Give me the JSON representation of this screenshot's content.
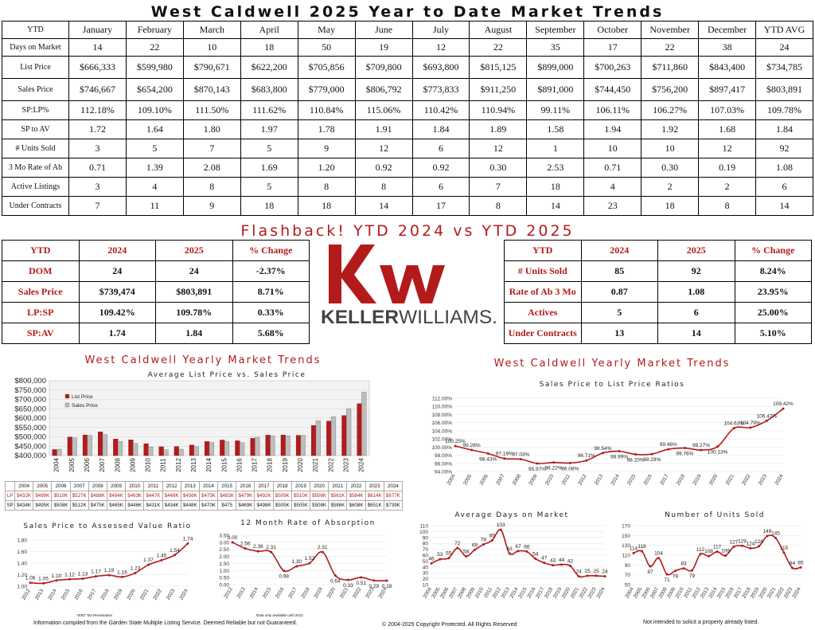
{
  "title": "West Caldwell 2025 Year to Date Market Trends",
  "colors": {
    "accent": "#b31b1b",
    "gray": "#bdbdbd"
  },
  "main_table": {
    "header": [
      "YTD",
      "January",
      "February",
      "March",
      "April",
      "May",
      "June",
      "July",
      "August",
      "September",
      "October",
      "November",
      "December",
      "YTD AVG"
    ],
    "rows": [
      {
        "label": "Days on Market",
        "values": [
          "14",
          "22",
          "10",
          "18",
          "50",
          "19",
          "12",
          "22",
          "35",
          "17",
          "22",
          "38",
          "24"
        ]
      },
      {
        "label": "List Price",
        "values": [
          "$666,333",
          "$599,980",
          "$790,671",
          "$622,200",
          "$705,856",
          "$709,800",
          "$693,800",
          "$815,125",
          "$899,000",
          "$700,263",
          "$711,860",
          "$843,400",
          "$734,785"
        ]
      },
      {
        "label": "Sales Price",
        "values": [
          "$746,667",
          "$654,200",
          "$870,143",
          "$683,800",
          "$779,000",
          "$806,792",
          "$773,833",
          "$911,250",
          "$891,000",
          "$744,450",
          "$756,200",
          "$897,417",
          "$803,891"
        ]
      },
      {
        "label": "SP:LP%",
        "values": [
          "112.18%",
          "109.10%",
          "111.50%",
          "111.62%",
          "110.84%",
          "115.06%",
          "110.42%",
          "110.94%",
          "99.11%",
          "106.11%",
          "106.27%",
          "107.03%",
          "109.78%"
        ]
      },
      {
        "label": "SP to AV",
        "values": [
          "1.72",
          "1.64",
          "1.80",
          "1.97",
          "1.78",
          "1.91",
          "1.84",
          "1.89",
          "1.58",
          "1.94",
          "1.92",
          "1.68",
          "1.84"
        ]
      },
      {
        "label": "# Units Sold",
        "values": [
          "3",
          "5",
          "7",
          "5",
          "9",
          "12",
          "6",
          "12",
          "1",
          "10",
          "10",
          "12",
          "92"
        ]
      },
      {
        "label": "3 Mo Rate of Ab",
        "values": [
          "0.71",
          "1.39",
          "2.08",
          "1.69",
          "1.20",
          "0.92",
          "0.92",
          "0.30",
          "2.53",
          "0.71",
          "0.30",
          "0.19",
          "1.08"
        ]
      },
      {
        "label": "Active Listings",
        "values": [
          "3",
          "4",
          "8",
          "5",
          "8",
          "8",
          "6",
          "7",
          "18",
          "4",
          "2",
          "2",
          "6"
        ]
      },
      {
        "label": "Under Contracts",
        "values": [
          "7",
          "11",
          "9",
          "18",
          "18",
          "14",
          "17",
          "8",
          "14",
          "23",
          "18",
          "8",
          "14"
        ]
      }
    ]
  },
  "flashback_title": "Flashback!  YTD 2024 vs YTD 2025",
  "left_compare": {
    "header": [
      "YTD",
      "2024",
      "2025",
      "% Change"
    ],
    "rows": [
      [
        "DOM",
        "24",
        "24",
        "-2.37%"
      ],
      [
        "Sales Price",
        "$739,474",
        "$803,891",
        "8.71%"
      ],
      [
        "LP:SP",
        "109.42%",
        "109.78%",
        "0.33%"
      ],
      [
        "SP:AV",
        "1.74",
        "1.84",
        "5.68%"
      ]
    ]
  },
  "right_compare": {
    "header": [
      "YTD",
      "2024",
      "2025",
      "% Change"
    ],
    "rows": [
      [
        "# Units Sold",
        "85",
        "92",
        "8.24%"
      ],
      [
        "Rate of Ab 3 Mo",
        "0.87",
        "1.08",
        "23.95%"
      ],
      [
        "Actives",
        "5",
        "6",
        "25.00%"
      ],
      [
        "Under Contracts",
        "13",
        "14",
        "5.10%"
      ]
    ]
  },
  "logo": {
    "mark": "kw",
    "wordmark": "KELLERWILLIAMS."
  },
  "left_section_title": "West Caldwell Yearly Market Trends",
  "right_section_title": "West Caldwell Yearly Market Trends",
  "chart_data": [
    {
      "id": "avg-price",
      "type": "bar",
      "title": "Average List Price vs. Sales Price",
      "categories": [
        "2004",
        "2005",
        "2006",
        "2007",
        "2008",
        "2009",
        "2010",
        "2011",
        "2012",
        "2013",
        "2014",
        "2015",
        "2016",
        "2017",
        "2018",
        "2019",
        "2020",
        "2021",
        "2022",
        "2023",
        "2024"
      ],
      "series": [
        {
          "name": "List Price",
          "values": [
            432,
            499,
            510,
            527,
            488,
            484,
            463,
            447,
            448,
            456,
            475,
            483,
            479,
            492,
            509,
            510,
            508,
            561,
            584,
            614,
            677
          ]
        },
        {
          "name": "Sales Price",
          "values": [
            434,
            495,
            508,
            512,
            475,
            465,
            446,
            431,
            434,
            448,
            470,
            475,
            469,
            498,
            505,
            505,
            508,
            586,
            608,
            651,
            739
          ]
        }
      ],
      "ylim": [
        400000,
        800000
      ],
      "yticks": [
        "$400,000",
        "$450,000",
        "$500,000",
        "$550,000",
        "$600,000",
        "$650,000",
        "$700,000",
        "$750,000",
        "$800,000"
      ],
      "table_rows": [
        {
          "label": "LP",
          "values": [
            "$432K",
            "$499K",
            "$510K",
            "$527K",
            "$488K",
            "$484K",
            "$463K",
            "$447K",
            "$448K",
            "$456K",
            "$475K",
            "$483K",
            "$479K",
            "$492K",
            "$509K",
            "$510K",
            "$508K",
            "$561K",
            "$584K",
            "$614K",
            "$677K"
          ]
        },
        {
          "label": "SP",
          "values": [
            "$434K",
            "$495K",
            "$508K",
            "$512K",
            "$475K",
            "$465K",
            "$446K",
            "$431K",
            "$434K",
            "$448K",
            "$470K",
            "$475",
            "$469K",
            "$498K",
            "$505K",
            "$505K",
            "$508K",
            "$586K",
            "$608K",
            "$651K",
            "$739K"
          ]
        }
      ]
    },
    {
      "id": "sp-lp",
      "type": "line",
      "title": "Sales Price to List Price Ratios",
      "x": [
        "2004",
        "2005",
        "2006",
        "2007",
        "2008",
        "2009",
        "2010",
        "2011",
        "2012",
        "2013",
        "2014",
        "2015",
        "2016",
        "2017",
        "2018",
        "2019",
        "2020",
        "2021",
        "2022",
        "2023",
        "2024"
      ],
      "values": [
        100.25,
        99.28,
        98.43,
        97.18,
        97.03,
        95.97,
        96.22,
        96.08,
        96.71,
        98.54,
        98.99,
        98.2,
        98.29,
        99.46,
        99.76,
        99.27,
        100.13,
        104.63,
        104.79,
        106.47,
        109.42
      ],
      "labels": [
        "100.25%",
        "99.28%",
        "98.43%",
        "97.18%",
        "97.03%",
        "95.97%",
        "96.22%",
        "96.08%",
        "96.71%",
        "98.54%",
        "98.99%",
        "98.20%",
        "98.29%",
        "99.46%",
        "99.76%",
        "99.27%",
        "100.13%",
        "104.63%",
        "104.79%",
        "106.47%",
        "109.42%"
      ],
      "ylim": [
        94,
        112
      ],
      "yticks": [
        "94.00%",
        "96.00%",
        "98.00%",
        "100.00%",
        "102.00%",
        "104.00%",
        "106.00%",
        "108.00%",
        "110.00%",
        "112.00%"
      ]
    },
    {
      "id": "sp-av",
      "type": "line",
      "title": "Sales Price to Assessed Value Ratio",
      "x": [
        "2012",
        "2013",
        "2014",
        "2015",
        "2016",
        "2017",
        "2018",
        "2019",
        "2020",
        "2021",
        "2022",
        "2023",
        "2024"
      ],
      "values": [
        1.06,
        1.05,
        1.1,
        1.12,
        1.13,
        1.17,
        1.19,
        1.16,
        1.23,
        1.37,
        1.45,
        1.54,
        1.74
      ],
      "labels": [
        "1.06",
        "1.05",
        "1.10",
        "1.12",
        "1.13",
        "1.17",
        "1.19",
        "1.16",
        "1.23",
        "1.37",
        "1.45",
        "1.54",
        "1.74"
      ],
      "ylim": [
        1.0,
        1.8
      ],
      "yticks": [
        "1.00",
        "1.20",
        "1.40",
        "1.60",
        "1.80"
      ]
    },
    {
      "id": "absorption",
      "type": "line",
      "title": "12 Month Rate of Absorption",
      "x": [
        "2012",
        "2013",
        "2014",
        "2015",
        "2016",
        "2017",
        "2018",
        "2019",
        "2020",
        "2021",
        "2022",
        "2023",
        "2024"
      ],
      "values": [
        3.0,
        2.56,
        2.36,
        2.31,
        0.98,
        1.3,
        1.52,
        2.31,
        0.64,
        0.33,
        0.51,
        0.29,
        0.28
      ],
      "labels": [
        "3.00",
        "2.56",
        "2.36",
        "2.31",
        "0.98",
        "1.30",
        "1.52",
        "2.31",
        "0.64",
        "0.33",
        "0.51",
        "0.29",
        "0.28"
      ],
      "ylim": [
        0,
        3.5
      ],
      "yticks": [
        "0.00",
        "0.50",
        "1.00",
        "1.50",
        "2.00",
        "2.50",
        "3.00",
        "3.50"
      ]
    },
    {
      "id": "dom",
      "type": "line",
      "title": "Average Days on Market",
      "x": [
        "2004",
        "2005",
        "2006",
        "2007",
        "2008",
        "2009",
        "2010",
        "2011",
        "2012",
        "2013",
        "2014",
        "2015",
        "2016",
        "2017",
        "2018",
        "2019",
        "2020",
        "2021",
        "2022",
        "2023",
        "2024"
      ],
      "values": [
        46,
        53,
        55,
        72,
        58,
        69,
        78,
        85,
        103,
        63,
        67,
        66,
        54,
        47,
        43,
        44,
        42,
        24,
        25,
        25,
        24
      ],
      "labels": [
        "46",
        "53",
        "55",
        "72",
        "58",
        "69",
        "78",
        "85",
        "103",
        "63",
        "67",
        "66",
        "54",
        "47",
        "43",
        "44",
        "42",
        "24",
        "25",
        "25",
        "24"
      ],
      "ylim": [
        10,
        110
      ],
      "yticks": [
        "10",
        "20",
        "30",
        "40",
        "50",
        "60",
        "70",
        "80",
        "90",
        "100",
        "110"
      ]
    },
    {
      "id": "units",
      "type": "line",
      "title": "Number of Units Sold",
      "x": [
        "2004",
        "2005",
        "2006",
        "2007",
        "2008",
        "2009",
        "2010",
        "2011",
        "2012",
        "2013",
        "2014",
        "2015",
        "2016",
        "2017",
        "2018",
        "2019",
        "2020",
        "2021",
        "2022",
        "2023",
        "2024"
      ],
      "values": [
        114,
        118,
        87,
        104,
        71,
        78,
        83,
        79,
        112,
        108,
        117,
        109,
        127,
        129,
        124,
        128,
        149,
        145,
        115,
        84,
        85
      ],
      "labels": [
        "114",
        "118",
        "87",
        "104",
        "71",
        "78",
        "83",
        "79",
        "112",
        "108",
        "117",
        "109",
        "127",
        "129",
        "124",
        "128",
        "149",
        "145",
        "115",
        "84",
        "85"
      ],
      "ylim": [
        50,
        170
      ],
      "yticks": [
        "50",
        "70",
        "90",
        "110",
        "130",
        "150",
        "170"
      ]
    }
  ],
  "notes": {
    "sp_av_note": "*2007 Tax Revaluation",
    "abs_note": "Data only available until 2012",
    "footer_left": "Information compiled from the Garden State Multiple Listing Service.  Deemed Reliable but not Guaranteed.",
    "footer_center": "© 2004-2025 Copyright Protected.  All Rights Reserved",
    "footer_right": "Not intended to solicit a property already listed."
  }
}
